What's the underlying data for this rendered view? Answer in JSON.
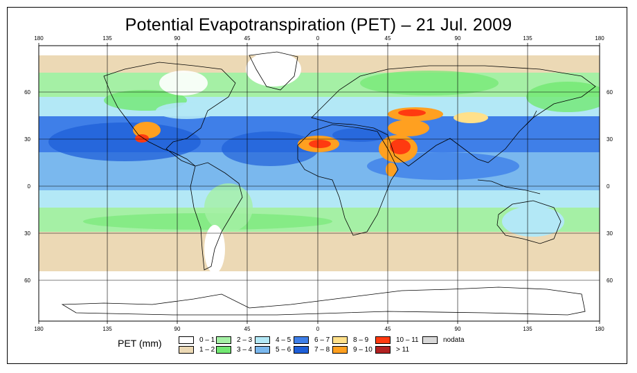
{
  "title": "Potential Evapotranspiration (PET) – 21 Jul. 2009",
  "map": {
    "projection": "equirectangular",
    "lon_ticks_top": [
      "180",
      "135",
      "90",
      "45",
      "0",
      "45",
      "90",
      "135",
      "180"
    ],
    "lon_ticks_bottom": [
      "180",
      "135",
      "90",
      "45",
      "0",
      "45",
      "90",
      "135",
      "180"
    ],
    "lat_ticks_left": [
      "60",
      "30",
      "0",
      "30",
      "60"
    ],
    "lat_ticks_right": [
      "60",
      "30",
      "0",
      "30",
      "60"
    ],
    "lon_values": [
      -180,
      -135,
      -90,
      -45,
      0,
      45,
      90,
      135,
      180
    ],
    "lat_values": [
      60,
      30,
      0,
      -30,
      -60
    ]
  },
  "legend": {
    "title": "PET (mm)",
    "items": [
      {
        "label": "0 – 1",
        "color": "#ffffff"
      },
      {
        "label": "1 – 2",
        "color": "#ecd9b5"
      },
      {
        "label": "2 – 3",
        "color": "#a5f0a5"
      },
      {
        "label": "3 – 4",
        "color": "#72e872"
      },
      {
        "label": "4 – 5",
        "color": "#b3e8f6"
      },
      {
        "label": "5 – 6",
        "color": "#7ab8ee"
      },
      {
        "label": "6 – 7",
        "color": "#3f7fe8"
      },
      {
        "label": "7 – 8",
        "color": "#1f5fd8"
      },
      {
        "label": "8 – 9",
        "color": "#ffe08a"
      },
      {
        "label": "9 – 10",
        "color": "#ffa020"
      },
      {
        "label": "10 – 11",
        "color": "#ff3a10"
      },
      {
        "label": "> 11",
        "color": "#b22222"
      },
      {
        "label": "nodata",
        "color": "#d8d8d8"
      }
    ]
  }
}
